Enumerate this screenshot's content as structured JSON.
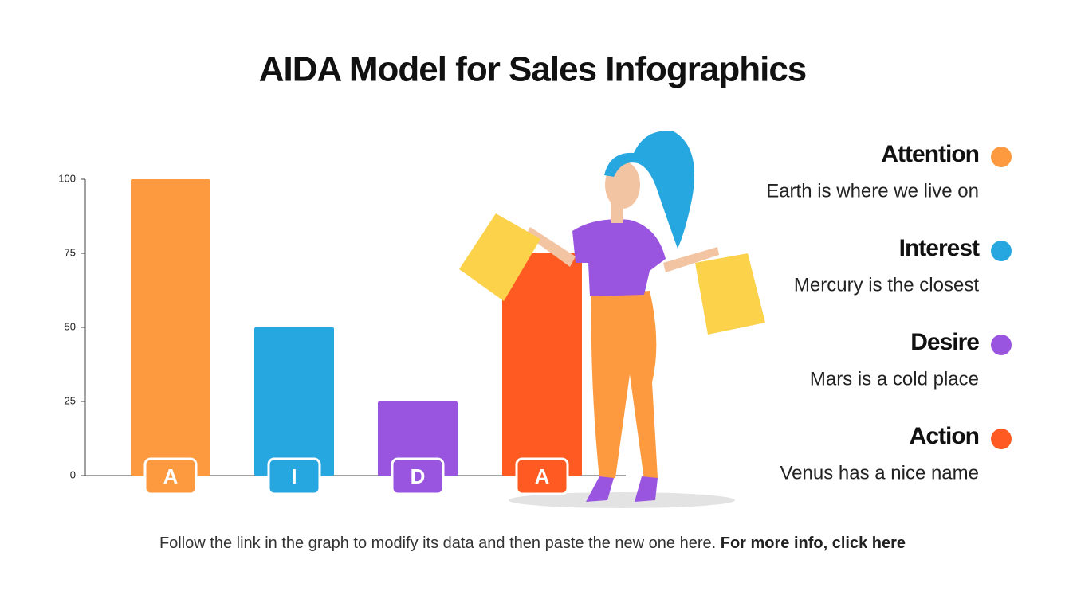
{
  "chart_data": {
    "type": "bar",
    "title": "AIDA Model for Sales Infographics",
    "categories": [
      "A",
      "I",
      "D",
      "A"
    ],
    "values": [
      100,
      50,
      25,
      75
    ],
    "colors": [
      "#fd9a3f",
      "#27a7e0",
      "#9a55e0",
      "#fe5a22"
    ],
    "ylim": [
      0,
      100
    ],
    "yticks": [
      0,
      25,
      50,
      75,
      100
    ],
    "items": [
      {
        "name": "Attention",
        "description": "Earth is where we live on",
        "color": "#fd9a3f"
      },
      {
        "name": "Interest",
        "description": "Mercury is the closest",
        "color": "#27a7e0"
      },
      {
        "name": "Desire",
        "description": "Mars is a cold place",
        "color": "#9a55e0"
      },
      {
        "name": "Action",
        "description": "Venus has a nice name",
        "color": "#fe5a22"
      }
    ]
  },
  "footer": {
    "text": "Follow the link in the graph to modify its data and then paste the new one here.",
    "link": "For more info, click here"
  }
}
